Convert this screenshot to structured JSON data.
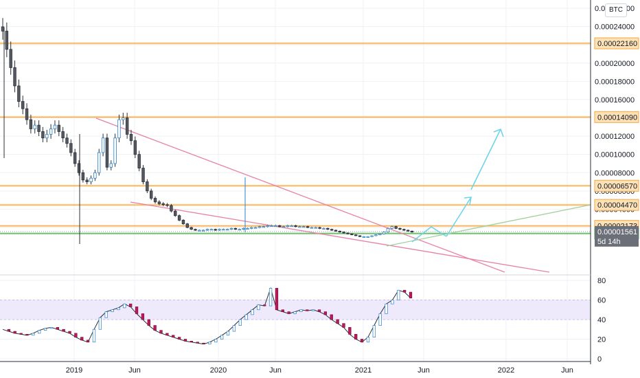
{
  "currency_badge": "BTC",
  "chart_data": [
    {
      "type": "candlestick",
      "quote_currency": "BTC",
      "x_ticks": [
        "2019",
        "Jun",
        "2020",
        "Jun",
        "2021",
        "Jun",
        "2022",
        "Jun"
      ],
      "y_ticks": [
        "0.00026000",
        "0.00024000",
        "0.00022000",
        "0.00020000",
        "0.00018000",
        "0.00016000",
        "0.00014000",
        "0.00012000",
        "0.00010000",
        "0.00008000",
        "0.00006000",
        "0.00004000",
        "0.00002000"
      ],
      "ylim": [
        0,
        0.000265
      ],
      "horizontal_levels": [
        {
          "value": 0.0002216,
          "label": "0.00022160",
          "color": "#f7a53b"
        },
        {
          "value": 0.0001409,
          "label": "0.00014090",
          "color": "#f7a53b"
        },
        {
          "value": 6.57e-05,
          "label": "0.00006570",
          "color": "#f7a53b"
        },
        {
          "value": 4.47e-05,
          "label": "0.00004470",
          "color": "#f7a53b"
        },
        {
          "value": 2.173e-05,
          "label": "0.00002173",
          "color": "#f7a53b"
        },
        {
          "value": 1.34e-05,
          "label": "0.00001340",
          "color": "#4caf50"
        }
      ],
      "last_price": {
        "value": 1.561e-05,
        "label": "0.00001561",
        "countdown": "5d 14h"
      },
      "closes": [
        0.000235,
        0.000215,
        0.000195,
        0.000175,
        0.000158,
        0.00015,
        0.000138,
        0.000128,
        0.000132,
        0.000125,
        0.000118,
        0.000122,
        0.000128,
        0.000132,
        0.000125,
        0.000118,
        0.000112,
        0.000102,
        9e-05,
        8e-05,
        7.2e-05,
        7e-05,
        7.4e-05,
        8e-05,
        0.000102,
        0.000118,
        8.6e-05,
        9e-05,
        0.000118,
        0.000138,
        0.00014,
        0.000122,
        0.000115,
        0.0001,
        8.5e-05,
        7e-05,
        6e-05,
        5.2e-05,
        4.8e-05,
        4.6e-05,
        4.5e-05,
        4.4e-05,
        3.8e-05,
        3.3e-05,
        2.8e-05,
        2.4e-05,
        2e-05,
        1.8e-05,
        1.7e-05,
        1.7e-05,
        1.7e-05,
        1.8e-05,
        1.8e-05,
        1.7e-05,
        1.8e-05,
        1.8e-05,
        1.8e-05,
        1.9e-05,
        1.8e-05,
        1.8e-05,
        1.9e-05,
        1.9e-05,
        2e-05,
        2e-05,
        2.1e-05,
        2.1e-05,
        2.2e-05,
        2.2e-05,
        2.2e-05,
        2.1e-05,
        2.1e-05,
        2.2e-05,
        2.2e-05,
        2.1e-05,
        2.1e-05,
        2.1e-05,
        2e-05,
        2e-05,
        2e-05,
        1.9e-05,
        1.9e-05,
        1.8e-05,
        1.7e-05,
        1.6e-05,
        1.5e-05,
        1.4e-05,
        1.3e-05,
        1.2e-05,
        1.1e-05,
        1e-05,
        1e-05,
        1e-05,
        1.1e-05,
        1.2e-05,
        1.3e-05,
        1.5e-05,
        1.9e-05,
        2.1e-05,
        1.9e-05,
        1.8e-05,
        1.7e-05,
        1.6e-05,
        1.5e-05
      ],
      "indicator": {
        "ylim": [
          0,
          80
        ],
        "y_ticks": [
          "80",
          "60",
          "40",
          "20",
          "0"
        ],
        "band": [
          40,
          60
        ],
        "values": [
          30,
          28,
          26,
          25,
          24,
          26,
          29,
          31,
          32,
          30,
          28,
          26,
          22,
          19,
          17,
          30,
          42,
          48,
          50,
          52,
          56,
          53,
          46,
          40,
          34,
          29,
          26,
          24,
          22,
          20,
          18,
          17,
          16,
          15,
          17,
          20,
          24,
          28,
          34,
          40,
          45,
          50,
          55,
          54,
          72,
          50,
          48,
          46,
          48,
          50,
          49,
          50,
          48,
          45,
          40,
          36,
          32,
          25,
          20,
          17,
          22,
          34,
          46,
          56,
          60,
          70,
          68,
          62
        ]
      }
    }
  ]
}
